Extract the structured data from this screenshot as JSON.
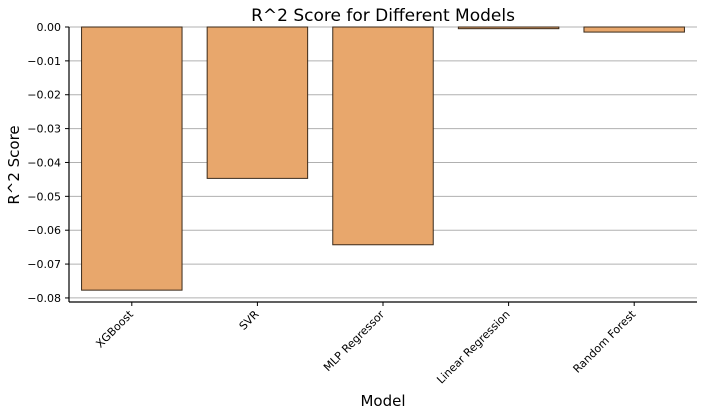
{
  "colors": {
    "bar_fill": "#e8a76c",
    "bar_edge": "#3a2a1a",
    "grid": "#b0b0b0",
    "axis": "#000000"
  },
  "chart_data": {
    "type": "bar",
    "title": "R^2 Score for Different Models",
    "xlabel": "Model",
    "ylabel": "R^2 Score",
    "categories": [
      "XGBoost",
      "SVR",
      "MLP Regressor",
      "Linear Regression",
      "Random Forest"
    ],
    "values": [
      -0.0777,
      -0.0447,
      -0.0643,
      -0.0005,
      -0.0015
    ],
    "ylim": [
      -0.0812,
      0.0
    ],
    "yticks": [
      0.0,
      -0.01,
      -0.02,
      -0.03,
      -0.04,
      -0.05,
      -0.06,
      -0.07,
      -0.08
    ],
    "ytick_labels": [
      "0.00",
      "−0.01",
      "−0.02",
      "−0.03",
      "−0.04",
      "−0.05",
      "−0.06",
      "−0.07",
      "−0.08"
    ],
    "grid": "horizontal",
    "legend": "none"
  }
}
